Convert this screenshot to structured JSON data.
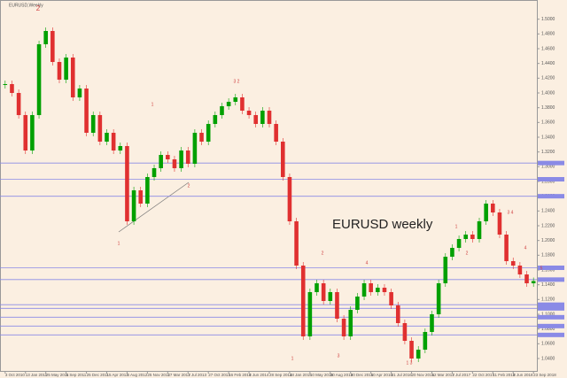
{
  "chart_data": {
    "type": "candlestick",
    "title": "EURUSD,Weekly",
    "annotation": "EURUSD weekly",
    "wave_labels": [
      "2",
      "1",
      "3 2",
      "1",
      "2",
      "1",
      "2",
      "3",
      "4",
      "1 3",
      "1",
      "2",
      "3 4",
      "4",
      "5"
    ],
    "categories": [
      "3 Oct 2010",
      null,
      null,
      "13 Jan 2011",
      null,
      null,
      "25 May 2011",
      null,
      null,
      "5 Sep 2011",
      null,
      null,
      "25 Dec 2011",
      null,
      null,
      "15 Apr 2012",
      null,
      null,
      "5 Aug 2012",
      null,
      null,
      "25 Nov 2012",
      null,
      null,
      "17 Mar 2013",
      null,
      null,
      "7 Jul 2013",
      null,
      null,
      "27 Oct 2013",
      null,
      null,
      "16 Feb 2014",
      null,
      null,
      "8 Jun 2014",
      null,
      null,
      "28 Sep 2014",
      null,
      null,
      "18 Jan 2015",
      null,
      null,
      "10 May 2015",
      null,
      null,
      "30 Aug 2015",
      null,
      null,
      "20 Dec 2015",
      null,
      null,
      "10 Apr 2016",
      null,
      null,
      "31 Jul 2016",
      null,
      null,
      "20 Nov 2016",
      null,
      null,
      "12 Mar 2017",
      null,
      null,
      "2 Jul 2017",
      null,
      null,
      "22 Oct 2017",
      null,
      null,
      "11 Feb 2018",
      null,
      null,
      "3 Jun 2018",
      null,
      null,
      "23 Sep 2018"
    ],
    "values": [
      1.412,
      1.4,
      1.37,
      1.322,
      1.37,
      1.466,
      1.484,
      1.442,
      1.418,
      1.448,
      1.394,
      1.406,
      1.346,
      1.37,
      1.334,
      1.346,
      1.322,
      1.328,
      1.226,
      1.268,
      1.25,
      1.286,
      1.298,
      1.316,
      1.31,
      1.298,
      1.322,
      1.304,
      1.346,
      1.334,
      1.358,
      1.37,
      1.382,
      1.388,
      1.394,
      1.376,
      1.37,
      1.358,
      1.376,
      1.358,
      1.334,
      1.286,
      1.226,
      1.166,
      1.07,
      1.13,
      1.142,
      1.118,
      1.13,
      1.094,
      1.07,
      1.106,
      1.124,
      1.142,
      1.13,
      1.136,
      1.13,
      1.112,
      1.088,
      1.064,
      1.04,
      1.052,
      1.076,
      1.1,
      1.142,
      1.178,
      1.19,
      1.202,
      1.208,
      1.202,
      1.226,
      1.25,
      1.238,
      1.208,
      1.172,
      1.166,
      1.154,
      1.142,
      1.145
    ],
    "up_color": "#00a000",
    "down_color": "#e03030",
    "levels": [
      1.305,
      1.283,
      1.26,
      1.163,
      1.147,
      1.113,
      1.108,
      1.096,
      1.084,
      1.072
    ],
    "level_color": "#8a8ae6",
    "ylim": [
      1.022,
      1.526
    ],
    "yticks": [
      {
        "value": 1.04,
        "label": "1.0400"
      },
      {
        "value": 1.06,
        "label": "1.0600"
      },
      {
        "value": 1.08,
        "label": "1.0800"
      },
      {
        "value": 1.1,
        "label": "1.1000"
      },
      {
        "value": 1.12,
        "label": "1.1200"
      },
      {
        "value": 1.14,
        "label": "1.1400"
      },
      {
        "value": 1.16,
        "label": "1.1600"
      },
      {
        "value": 1.18,
        "label": "1.1800"
      },
      {
        "value": 1.2,
        "label": "1.2000"
      },
      {
        "value": 1.22,
        "label": "1.2200"
      },
      {
        "value": 1.24,
        "label": "1.2400"
      },
      {
        "value": 1.26,
        "label": "1.2600"
      },
      {
        "value": 1.28,
        "label": "1.2800"
      },
      {
        "value": 1.3,
        "label": "1.3000"
      },
      {
        "value": 1.32,
        "label": "1.3200"
      },
      {
        "value": 1.34,
        "label": "1.3400"
      },
      {
        "value": 1.36,
        "label": "1.3600"
      },
      {
        "value": 1.38,
        "label": "1.3800"
      },
      {
        "value": 1.4,
        "label": "1.4000"
      },
      {
        "value": 1.42,
        "label": "1.4200"
      },
      {
        "value": 1.44,
        "label": "1.4400"
      },
      {
        "value": 1.46,
        "label": "1.4600"
      },
      {
        "value": 1.48,
        "label": "1.4800"
      },
      {
        "value": 1.5,
        "label": "1.5000"
      }
    ],
    "grid": false
  }
}
